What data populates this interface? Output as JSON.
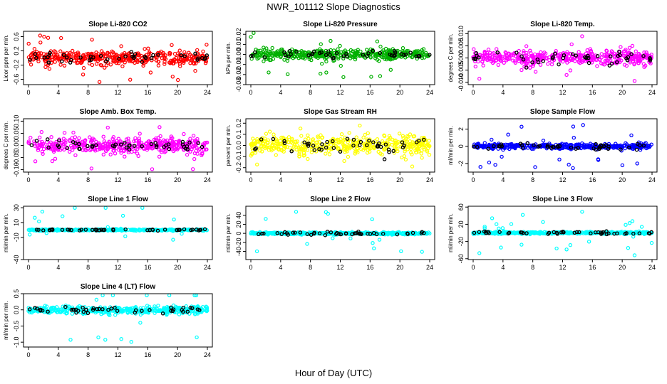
{
  "figure": {
    "title": "NWR_101112  Slope Diagnostics",
    "xlabel": "Hour of Day (UTC)"
  },
  "chart_data": [
    {
      "type": "scatter",
      "title": "Slope Li-820 CO2",
      "ylabel": "Licor ppm per min.",
      "color": "#ff0000",
      "xlim": [
        0,
        24
      ],
      "xticks": [
        0,
        4,
        8,
        12,
        16,
        20,
        24
      ],
      "ylim": [
        -0.75,
        0.75
      ],
      "yticks": [
        -0.6,
        -0.2,
        0.2,
        0.6
      ],
      "ytick_labels": [
        "-0.6",
        "-0.2",
        "0.2",
        "0.6"
      ],
      "spread": 0.2,
      "outlier": 0.7,
      "cal_spread": 0.15,
      "seed": 11
    },
    {
      "type": "scatter",
      "title": "Slope Li-820 Pressure",
      "ylabel": "kPa per min.",
      "color": "#00b000",
      "xlim": [
        0,
        24
      ],
      "xticks": [
        0,
        4,
        8,
        12,
        16,
        20,
        24
      ],
      "ylim": [
        -0.03,
        0.023
      ],
      "yticks": [
        -0.03,
        -0.02,
        -0.01,
        0.0,
        0.01,
        0.02
      ],
      "ytick_labels": [
        "-0.03",
        "-0.02",
        "-0.01",
        "0.00",
        "0.01",
        "0.02"
      ],
      "spread": 0.006,
      "outlier": 0.028,
      "cal_spread": 0.004,
      "seed": 23
    },
    {
      "type": "scatter",
      "title": "Slope Li-820 Temp.",
      "ylabel": "degrees C per min.",
      "color": "#ff00ff",
      "xlim": [
        0,
        24
      ],
      "xticks": [
        0,
        4,
        8,
        12,
        16,
        20,
        24
      ],
      "ylim": [
        -0.011,
        0.011
      ],
      "yticks": [
        -0.01,
        -0.005,
        0.0,
        0.005,
        0.01
      ],
      "ytick_labels": [
        "-0.010",
        "-0.005",
        "0.000",
        "0.005",
        "0.010"
      ],
      "spread": 0.003,
      "outlier": 0.01,
      "cal_spread": 0.003,
      "seed": 37
    },
    {
      "type": "scatter",
      "title": "Slope Amb. Box Temp.",
      "ylabel": "degrees C per min.",
      "color": "#ff00ff",
      "xlim": [
        0,
        24
      ],
      "xticks": [
        0,
        4,
        8,
        12,
        16,
        20,
        24
      ],
      "ylim": [
        -0.11,
        0.11
      ],
      "yticks": [
        -0.1,
        -0.05,
        0.0,
        0.05,
        0.1
      ],
      "ytick_labels": [
        "-0.10",
        "-0.05",
        "0.00",
        "0.05",
        "0.10"
      ],
      "spread": 0.035,
      "outlier": 0.1,
      "cal_spread": 0.02,
      "seed": 41
    },
    {
      "type": "scatter",
      "title": "Slope Gas Stream RH",
      "ylabel": "percent per min.",
      "color": "#ffff00",
      "xlim": [
        0,
        24
      ],
      "xticks": [
        0,
        4,
        8,
        12,
        16,
        20,
        24
      ],
      "ylim": [
        -0.24,
        0.24
      ],
      "yticks": [
        -0.2,
        -0.1,
        0.0,
        0.1,
        0.2
      ],
      "ytick_labels": [
        "-0.2",
        "-0.1",
        "0.0",
        "0.1",
        "0.2"
      ],
      "spread": 0.09,
      "outlier": 0.2,
      "cal_spread": 0.08,
      "seed": 53
    },
    {
      "type": "scatter",
      "title": "Slope Sample Flow",
      "ylabel": "ml/min per min.",
      "color": "#0000ff",
      "xlim": [
        0,
        24
      ],
      "xticks": [
        0,
        4,
        8,
        12,
        16,
        20,
        24
      ],
      "ylim": [
        -3.0,
        3.2
      ],
      "yticks": [
        -2,
        0,
        2
      ],
      "ytick_labels": [
        "-2",
        "0",
        "2"
      ],
      "spread": 0.3,
      "outlier": 2.6,
      "cal_spread": 0.4,
      "seed": 67
    },
    {
      "type": "scatter",
      "title": "Slope Line 1 Flow",
      "ylabel": "ml/min per min.",
      "color": "#00ffff",
      "xlim": [
        0,
        24
      ],
      "xticks": [
        0,
        4,
        8,
        12,
        16,
        20,
        24
      ],
      "ylim": [
        -40,
        32
      ],
      "yticks": [
        -40,
        -10,
        10,
        30
      ],
      "ytick_labels": [
        "-40",
        "-10",
        "10",
        "30"
      ],
      "spread": 1.0,
      "outlier": 35,
      "cal_spread": 1.0,
      "seed": 71
    },
    {
      "type": "scatter",
      "title": "Slope Line 2 Flow",
      "ylabel": "ml/min per min.",
      "color": "#00ffff",
      "xlim": [
        0,
        24
      ],
      "xticks": [
        0,
        4,
        8,
        12,
        16,
        20,
        24
      ],
      "ylim": [
        -58,
        60
      ],
      "yticks": [
        -40,
        -20,
        0,
        20,
        40
      ],
      "ytick_labels": [
        "-40",
        "-20",
        "0",
        "20",
        "40"
      ],
      "spread": 2.5,
      "outlier": 50,
      "cal_spread": 4,
      "seed": 83
    },
    {
      "type": "scatter",
      "title": "Slope Line 3 Flow",
      "ylabel": "ml/min per min.",
      "color": "#00ffff",
      "xlim": [
        0,
        24
      ],
      "xticks": [
        0,
        4,
        8,
        12,
        16,
        20,
        24
      ],
      "ylim": [
        -62,
        62
      ],
      "yticks": [
        -60,
        -20,
        20,
        60
      ],
      "ytick_labels": [
        "-60",
        "-20",
        "20",
        "60"
      ],
      "spread": 2.5,
      "outlier": 55,
      "cal_spread": 4,
      "seed": 97
    },
    {
      "type": "scatter",
      "title": "Slope Line 4 (LT) Flow",
      "ylabel": "ml/min per min.",
      "color": "#00ffff",
      "xlim": [
        0,
        24
      ],
      "xticks": [
        0,
        4,
        8,
        12,
        16,
        20,
        24
      ],
      "ylim": [
        -1.15,
        0.5
      ],
      "yticks": [
        -1.0,
        -0.5,
        0.0,
        0.5
      ],
      "ytick_labels": [
        "-1.0",
        "-0.5",
        "0.0",
        "0.5"
      ],
      "spread": 0.12,
      "outlier": 1.0,
      "cal_spread": 0.12,
      "seed": 101
    }
  ]
}
